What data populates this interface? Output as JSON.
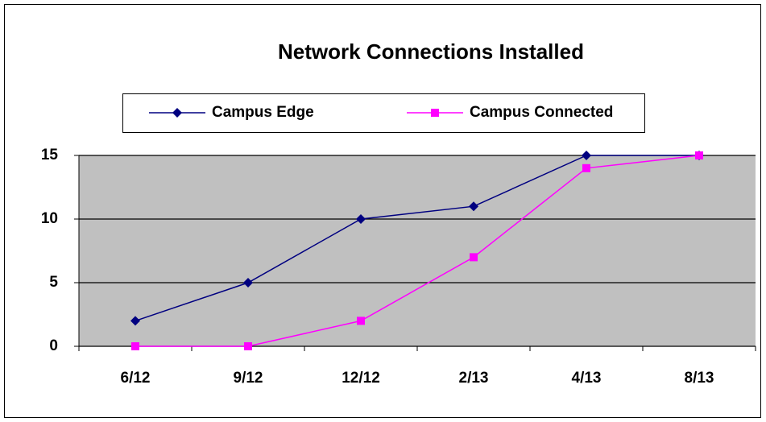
{
  "chart_data": {
    "type": "line",
    "title": "Network Connections Installed",
    "categories": [
      "6/12",
      "9/12",
      "12/12",
      "2/13",
      "4/13",
      "8/13"
    ],
    "series": [
      {
        "name": "Campus Edge",
        "color": "#000080",
        "marker": "diamond",
        "values": [
          2,
          5,
          10,
          11,
          15,
          15
        ]
      },
      {
        "name": "Campus Connected",
        "color": "#ff00ff",
        "marker": "square",
        "values": [
          0,
          0,
          2,
          7,
          14,
          15
        ]
      }
    ],
    "ylim": [
      0,
      15
    ],
    "yticks": [
      0,
      5,
      10,
      15
    ],
    "grid": true,
    "legend": "top"
  }
}
